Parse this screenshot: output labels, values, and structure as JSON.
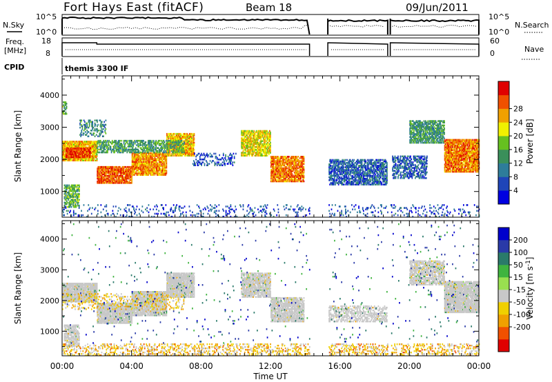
{
  "header": {
    "station": "Fort Hays East (fitACF)",
    "beam": "Beam 18",
    "date": "09/Jun/2011"
  },
  "status": {
    "nsky_label": "N.Sky",
    "nsearch_label": "N.Search",
    "freq_label_1": "Freq.",
    "freq_label_2": "[MHz]",
    "nave_label": "Nave",
    "cpid_label": "CPID",
    "cpid_value": "themis 3300 IF",
    "noise_ticks_left": [
      "10^5",
      "10^0"
    ],
    "noise_ticks_right": [
      "10^5",
      "10^0"
    ],
    "freq_ticks": [
      "18",
      "8"
    ],
    "nave_ticks": [
      "60",
      "0"
    ]
  },
  "colors": {
    "power_scale": [
      "#0000e0",
      "#1f45b8",
      "#2e7d9a",
      "#3a8f5a",
      "#66c020",
      "#f0f000",
      "#f0a000",
      "#f05000",
      "#e00000"
    ],
    "velocity_scale": [
      "#e00000",
      "#f05000",
      "#f0a000",
      "#f0d000",
      "#c8c8c8",
      "#99e050",
      "#3fb43f",
      "#2a7a6a",
      "#2a3aa8",
      "#0000cc"
    ],
    "ground_scatter": "#c8c8c8"
  },
  "chart_data": {
    "type": "heatmap",
    "xlabel": "Time UT",
    "x_tick_labels": [
      "00:00",
      "04:00",
      "08:00",
      "12:00",
      "16:00",
      "20:00",
      "00:00"
    ],
    "x_range_hours": [
      0,
      24
    ],
    "ylabel": "Slant Range [km]",
    "y_tick_labels": [
      "1000",
      "2000",
      "3000",
      "4000"
    ],
    "y_range_km": [
      200,
      4600
    ],
    "data_gaps_hours": [
      [
        14.25,
        15.3
      ],
      [
        18.75,
        18.9
      ]
    ],
    "panels": [
      {
        "name": "power",
        "colorbar_label": "Power [dB]",
        "colorbar_ticks": [
          "4",
          "8",
          "12",
          "16",
          "20",
          "24",
          "28"
        ],
        "range": [
          0,
          32
        ],
        "scatter_regions": [
          {
            "t0": 0.0,
            "t1": 0.25,
            "r0": 3400,
            "r1": 3800,
            "value": 14,
            "density": 0.5
          },
          {
            "t0": 0.0,
            "t1": 2.0,
            "r0": 1950,
            "r1": 2550,
            "value": 22,
            "density": 0.9
          },
          {
            "t0": 0.2,
            "t1": 1.6,
            "r0": 2050,
            "r1": 2350,
            "value": 28,
            "density": 0.9
          },
          {
            "t0": 0.1,
            "t1": 1.0,
            "r0": 500,
            "r1": 1200,
            "value": 14,
            "density": 0.6
          },
          {
            "t0": 1.0,
            "t1": 2.5,
            "r0": 2700,
            "r1": 3200,
            "value": 10,
            "density": 0.35
          },
          {
            "t0": 2.0,
            "t1": 4.0,
            "r0": 1250,
            "r1": 1750,
            "value": 26,
            "density": 0.85
          },
          {
            "t0": 4.0,
            "t1": 6.0,
            "r0": 1500,
            "r1": 2200,
            "value": 24,
            "density": 0.85
          },
          {
            "t0": 6.0,
            "t1": 7.6,
            "r0": 2100,
            "r1": 2800,
            "value": 22,
            "density": 0.85
          },
          {
            "t0": 2.0,
            "t1": 7.0,
            "r0": 2200,
            "r1": 2600,
            "value": 13,
            "density": 0.55
          },
          {
            "t0": 7.5,
            "t1": 10.0,
            "r0": 1800,
            "r1": 2200,
            "value": 6,
            "density": 0.3
          },
          {
            "t0": 10.3,
            "t1": 12.0,
            "r0": 2100,
            "r1": 2900,
            "value": 20,
            "density": 0.75
          },
          {
            "t0": 12.0,
            "t1": 13.9,
            "r0": 1300,
            "r1": 2100,
            "value": 25,
            "density": 0.8
          },
          {
            "t0": 15.3,
            "t1": 18.7,
            "r0": 1200,
            "r1": 2000,
            "value": 7,
            "density": 0.65
          },
          {
            "t0": 19.0,
            "t1": 21.0,
            "r0": 1400,
            "r1": 2100,
            "value": 7,
            "density": 0.5
          },
          {
            "t0": 20.0,
            "t1": 22.0,
            "r0": 2500,
            "r1": 3200,
            "value": 12,
            "density": 0.7
          },
          {
            "t0": 22.0,
            "t1": 24.0,
            "r0": 1600,
            "r1": 2600,
            "value": 25,
            "density": 0.85
          },
          {
            "t0": 0.0,
            "t1": 24.0,
            "r0": 200,
            "r1": 600,
            "value": 6,
            "density": 0.12
          }
        ]
      },
      {
        "name": "velocity",
        "colorbar_label": "Velocity [m s^-1]",
        "colorbar_ticks": [
          "200",
          "100",
          "50",
          "15",
          "-15",
          "-50",
          "-100",
          "-200"
        ],
        "range": [
          -250,
          250
        ],
        "scatter_regions": [
          {
            "t0": 0.0,
            "t1": 2.0,
            "r0": 1950,
            "r1": 2550,
            "value": 0,
            "density": 0.95
          },
          {
            "t0": 0.1,
            "t1": 1.0,
            "r0": 500,
            "r1": 1200,
            "value": 0,
            "density": 0.7
          },
          {
            "t0": 2.0,
            "t1": 4.0,
            "r0": 1250,
            "r1": 1900,
            "value": 0,
            "density": 0.9
          },
          {
            "t0": 4.0,
            "t1": 6.0,
            "r0": 1500,
            "r1": 2300,
            "value": 0,
            "density": 0.9
          },
          {
            "t0": 6.0,
            "t1": 7.6,
            "r0": 2100,
            "r1": 2900,
            "value": 0,
            "density": 0.9
          },
          {
            "t0": 10.3,
            "t1": 12.0,
            "r0": 2100,
            "r1": 2900,
            "value": 0,
            "density": 0.8
          },
          {
            "t0": 12.0,
            "t1": 13.9,
            "r0": 1300,
            "r1": 2100,
            "value": 0,
            "density": 0.8
          },
          {
            "t0": 15.3,
            "t1": 18.7,
            "r0": 1300,
            "r1": 1800,
            "value": 0,
            "density": 0.5
          },
          {
            "t0": 20.0,
            "t1": 22.0,
            "r0": 2500,
            "r1": 3300,
            "value": 0,
            "density": 0.7
          },
          {
            "t0": 22.0,
            "t1": 24.0,
            "r0": 1600,
            "r1": 2600,
            "value": 0,
            "density": 0.9
          },
          {
            "t0": 0.0,
            "t1": 7.0,
            "r0": 1700,
            "r1": 2200,
            "value": -70,
            "density": 0.18
          },
          {
            "t0": 0.0,
            "t1": 24.0,
            "r0": 200,
            "r1": 600,
            "value": -80,
            "density": 0.28
          },
          {
            "t0": 0.0,
            "t1": 24.0,
            "r0": 600,
            "r1": 4500,
            "value": 150,
            "density": 0.012
          }
        ]
      }
    ]
  }
}
